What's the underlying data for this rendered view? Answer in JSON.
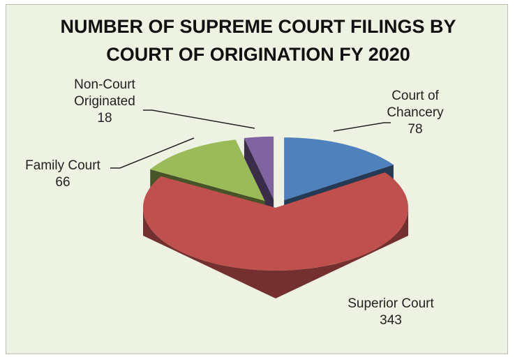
{
  "chart_data": {
    "type": "pie3d",
    "title": "NUMBER OF SUPREME COURT FILINGS BY COURT OF ORIGINATION FY 2020",
    "categories": [
      "Court of Chancery",
      "Superior Court",
      "Family Court",
      "Non-Court Originated"
    ],
    "values": [
      78,
      343,
      66,
      18
    ],
    "colors": [
      "#4f81bd",
      "#c0504d",
      "#9bbb59",
      "#8064a2"
    ]
  }
}
